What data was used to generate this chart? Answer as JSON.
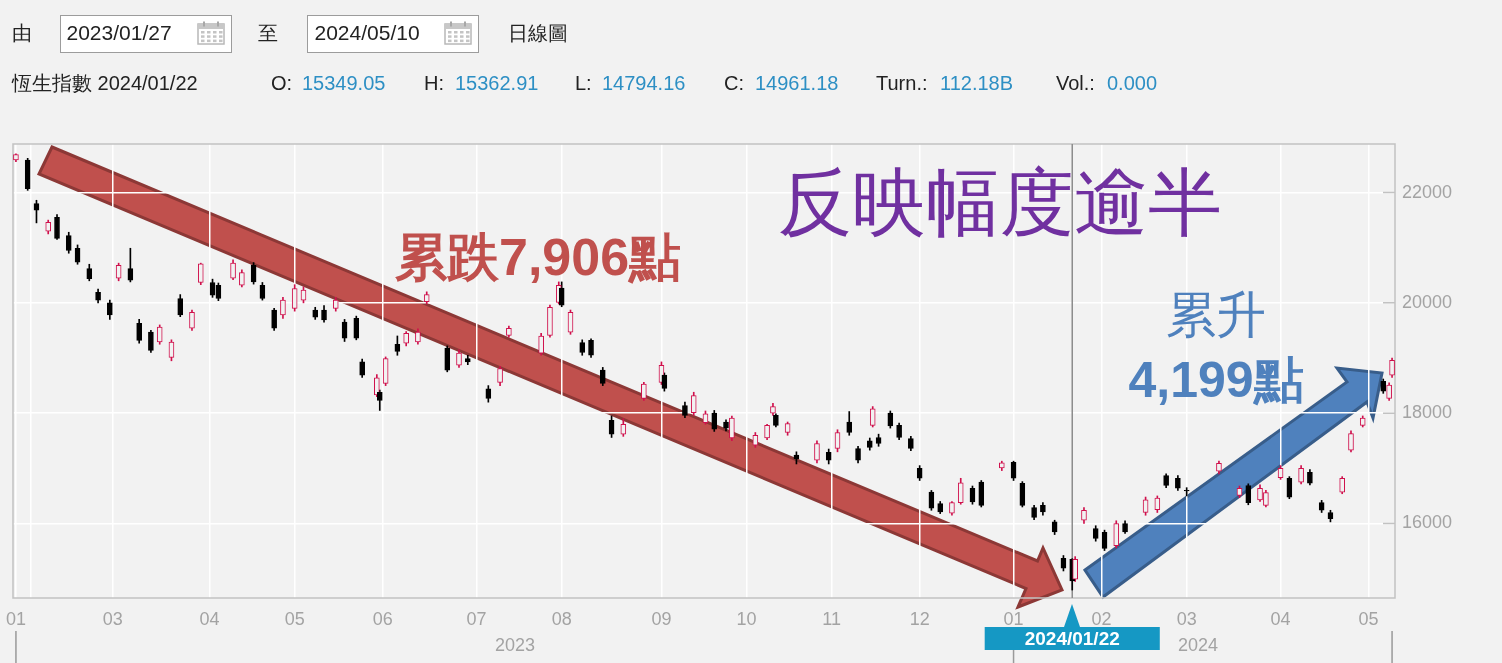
{
  "chart_data": {
    "type": "candlestick",
    "x": [
      "2023-01-27",
      "2023-01-31",
      "2023-02-03",
      "2023-02-07",
      "2023-02-10",
      "2023-02-14",
      "2023-02-17",
      "2023-02-21",
      "2023-02-24",
      "2023-02-28",
      "2023-03-03",
      "2023-03-07",
      "2023-03-10",
      "2023-03-14",
      "2023-03-17",
      "2023-03-21",
      "2023-03-24",
      "2023-03-28",
      "2023-03-31",
      "2023-04-04",
      "2023-04-06",
      "2023-04-11",
      "2023-04-14",
      "2023-04-18",
      "2023-04-21",
      "2023-04-25",
      "2023-04-28",
      "2023-05-02",
      "2023-05-05",
      "2023-05-09",
      "2023-05-12",
      "2023-05-16",
      "2023-05-19",
      "2023-05-23",
      "2023-05-25",
      "2023-05-30",
      "2023-05-31",
      "2023-06-02",
      "2023-06-06",
      "2023-06-09",
      "2023-06-13",
      "2023-06-16",
      "2023-06-23",
      "2023-06-27",
      "2023-06-30",
      "2023-07-07",
      "2023-07-11",
      "2023-07-14",
      "2023-07-25",
      "2023-07-28",
      "2023-07-31",
      "2023-08-01",
      "2023-08-04",
      "2023-08-08",
      "2023-08-11",
      "2023-08-15",
      "2023-08-18",
      "2023-08-22",
      "2023-08-29",
      "2023-09-04",
      "2023-09-05",
      "2023-09-12",
      "2023-09-15",
      "2023-09-19",
      "2023-09-22",
      "2023-09-26",
      "2023-09-28",
      "2023-10-06",
      "2023-10-10",
      "2023-10-12",
      "2023-10-13",
      "2023-10-17",
      "2023-10-20",
      "2023-10-27",
      "2023-10-31",
      "2023-11-03",
      "2023-11-07",
      "2023-11-10",
      "2023-11-14",
      "2023-11-15",
      "2023-11-17",
      "2023-11-21",
      "2023-11-24",
      "2023-11-28",
      "2023-12-01",
      "2023-12-05",
      "2023-12-08",
      "2023-12-12",
      "2023-12-15",
      "2023-12-19",
      "2023-12-22",
      "2023-12-29",
      "2024-01-02",
      "2024-01-05",
      "2024-01-09",
      "2024-01-12",
      "2024-01-16",
      "2024-01-19",
      "2024-01-22",
      "2024-01-23",
      "2024-01-26",
      "2024-01-30",
      "2024-02-02",
      "2024-02-06",
      "2024-02-09",
      "2024-02-16",
      "2024-02-20",
      "2024-02-23",
      "2024-02-27",
      "2024-03-01",
      "2024-03-12",
      "2024-03-19",
      "2024-03-22",
      "2024-03-26",
      "2024-03-28",
      "2024-04-02",
      "2024-04-05",
      "2024-04-09",
      "2024-04-12",
      "2024-04-16",
      "2024-04-19",
      "2024-04-23",
      "2024-04-26",
      "2024-04-30",
      "2024-05-07",
      "2024-05-09",
      "2024-05-10"
    ],
    "ohlc": [
      [
        22590,
        22700,
        22560,
        22690
      ],
      [
        22590,
        22620,
        22040,
        22070
      ],
      [
        21800,
        21860,
        21450,
        21680
      ],
      [
        21300,
        21500,
        21250,
        21460
      ],
      [
        21550,
        21600,
        21150,
        21170
      ],
      [
        21220,
        21280,
        20900,
        20950
      ],
      [
        20990,
        21050,
        20700,
        20740
      ],
      [
        20620,
        20700,
        20400,
        20440
      ],
      [
        20190,
        20250,
        20000,
        20050
      ],
      [
        20000,
        20050,
        19700,
        19780
      ],
      [
        20450,
        20720,
        20400,
        20680
      ],
      [
        20620,
        20990,
        20380,
        20410
      ],
      [
        19630,
        19700,
        19270,
        19320
      ],
      [
        19470,
        19500,
        19100,
        19140
      ],
      [
        19290,
        19600,
        19250,
        19560
      ],
      [
        19010,
        19330,
        18950,
        19290
      ],
      [
        20080,
        20150,
        19750,
        19780
      ],
      [
        19540,
        19870,
        19500,
        19830
      ],
      [
        20370,
        20720,
        20330,
        20710
      ],
      [
        20370,
        20430,
        20100,
        20140
      ],
      [
        20320,
        20360,
        20040,
        20080
      ],
      [
        20450,
        20780,
        20420,
        20720
      ],
      [
        20320,
        20600,
        20290,
        20550
      ],
      [
        20680,
        20730,
        20340,
        20380
      ],
      [
        20320,
        20370,
        20050,
        20080
      ],
      [
        19870,
        19900,
        19500,
        19540
      ],
      [
        19780,
        20100,
        19720,
        20050
      ],
      [
        19900,
        20330,
        19850,
        20260
      ],
      [
        20050,
        20290,
        20000,
        20230
      ],
      [
        19870,
        19920,
        19700,
        19740
      ],
      [
        19870,
        19950,
        19650,
        19690
      ],
      [
        19900,
        20100,
        19850,
        20050
      ],
      [
        19650,
        19700,
        19300,
        19360
      ],
      [
        19720,
        19760,
        19330,
        19360
      ],
      [
        18930,
        18980,
        18650,
        18690
      ],
      [
        18330,
        18700,
        18300,
        18640
      ],
      [
        18380,
        18420,
        18050,
        18230
      ],
      [
        18540,
        19020,
        18500,
        18990
      ],
      [
        19250,
        19400,
        19050,
        19120
      ],
      [
        19270,
        19480,
        19220,
        19450
      ],
      [
        19290,
        19530,
        19250,
        19470
      ],
      [
        20020,
        20200,
        19980,
        20150
      ],
      [
        19180,
        19220,
        18750,
        18780
      ],
      [
        18870,
        19150,
        18830,
        19090
      ],
      [
        18990,
        19050,
        18880,
        18930
      ],
      [
        18440,
        18500,
        18200,
        18270
      ],
      [
        18560,
        18850,
        18500,
        18810
      ],
      [
        19410,
        19580,
        19380,
        19540
      ],
      [
        19090,
        19450,
        19050,
        19400
      ],
      [
        19410,
        19960,
        19380,
        19920
      ],
      [
        20010,
        20380,
        19980,
        20320
      ],
      [
        20270,
        20380,
        19930,
        19960
      ],
      [
        19470,
        19870,
        19430,
        19830
      ],
      [
        19280,
        19330,
        19050,
        19100
      ],
      [
        19320,
        19350,
        19010,
        19050
      ],
      [
        18780,
        18830,
        18500,
        18540
      ],
      [
        17870,
        17950,
        17560,
        17620
      ],
      [
        17620,
        17900,
        17580,
        17800
      ],
      [
        18270,
        18560,
        18230,
        18530
      ],
      [
        18560,
        18930,
        18520,
        18870
      ],
      [
        18690,
        18730,
        18400,
        18450
      ],
      [
        18140,
        18200,
        17920,
        17960
      ],
      [
        18010,
        18380,
        17960,
        18320
      ],
      [
        17830,
        18040,
        17800,
        17990
      ],
      [
        18000,
        18050,
        17670,
        17710
      ],
      [
        17840,
        17880,
        17680,
        17730
      ],
      [
        17550,
        17950,
        17500,
        17910
      ],
      [
        17420,
        17650,
        17380,
        17600
      ],
      [
        17550,
        17800,
        17520,
        17780
      ],
      [
        18000,
        18180,
        17960,
        18120
      ],
      [
        17960,
        17990,
        17750,
        17780
      ],
      [
        17650,
        17840,
        17600,
        17810
      ],
      [
        17240,
        17300,
        17080,
        17170
      ],
      [
        17150,
        17500,
        17100,
        17450
      ],
      [
        17290,
        17350,
        17080,
        17150
      ],
      [
        17360,
        17700,
        17300,
        17650
      ],
      [
        17840,
        18030,
        17600,
        17650
      ],
      [
        17360,
        17400,
        17100,
        17150
      ],
      [
        17500,
        17550,
        17330,
        17380
      ],
      [
        17780,
        18120,
        17750,
        18080
      ],
      [
        17560,
        17620,
        17400,
        17450
      ],
      [
        18000,
        18040,
        17730,
        17770
      ],
      [
        17780,
        17820,
        17520,
        17560
      ],
      [
        17540,
        17580,
        17320,
        17360
      ],
      [
        17000,
        17050,
        16780,
        16820
      ],
      [
        16570,
        16600,
        16240,
        16280
      ],
      [
        16360,
        16400,
        16180,
        16210
      ],
      [
        16190,
        16400,
        16150,
        16380
      ],
      [
        16380,
        16820,
        16350,
        16740
      ],
      [
        16640,
        16680,
        16350,
        16390
      ],
      [
        16750,
        16780,
        16300,
        16330
      ],
      [
        17010,
        17130,
        16960,
        17100
      ],
      [
        17110,
        17130,
        16780,
        16820
      ],
      [
        16730,
        16760,
        16300,
        16330
      ],
      [
        16290,
        16330,
        16070,
        16110
      ],
      [
        16330,
        16380,
        16150,
        16210
      ],
      [
        16030,
        16060,
        15800,
        15850
      ],
      [
        15370,
        15420,
        15140,
        15190
      ],
      [
        15349.05,
        15362.91,
        14794.16,
        14961.18
      ],
      [
        14990,
        15400,
        14950,
        15350
      ],
      [
        16060,
        16290,
        16000,
        16240
      ],
      [
        15910,
        15960,
        15680,
        15730
      ],
      [
        15840,
        15880,
        15510,
        15550
      ],
      [
        15600,
        16050,
        15560,
        16000
      ],
      [
        16000,
        16050,
        15820,
        15850
      ],
      [
        16200,
        16480,
        16150,
        16430
      ],
      [
        16250,
        16500,
        16200,
        16460
      ],
      [
        16870,
        16900,
        16650,
        16690
      ],
      [
        16820,
        16870,
        16600,
        16640
      ],
      [
        16600,
        16650,
        16500,
        16590
      ],
      [
        16950,
        17130,
        16900,
        17090
      ],
      [
        16510,
        16680,
        16470,
        16640
      ],
      [
        16690,
        16720,
        16340,
        16380
      ],
      [
        16430,
        16700,
        16400,
        16640
      ],
      [
        16330,
        16600,
        16300,
        16560
      ],
      [
        16830,
        17050,
        16800,
        17000
      ],
      [
        16820,
        16850,
        16450,
        16480
      ],
      [
        16750,
        17050,
        16720,
        17000
      ],
      [
        16930,
        16980,
        16700,
        16730
      ],
      [
        16380,
        16420,
        16200,
        16240
      ],
      [
        16200,
        16240,
        16030,
        16090
      ],
      [
        16570,
        16850,
        16540,
        16820
      ],
      [
        17330,
        17680,
        17300,
        17630
      ],
      [
        17780,
        17950,
        17750,
        17910
      ],
      [
        18580,
        18620,
        18360,
        18400
      ],
      [
        18270,
        18550,
        18230,
        18510
      ],
      [
        18690,
        19000,
        18650,
        18960
      ]
    ],
    "colors": [
      "#d0104c",
      "#000000",
      "#000000",
      "#d0104c",
      "#000000",
      "#000000",
      "#000000",
      "#000000",
      "#000000",
      "#000000",
      "#d0104c",
      "#000000",
      "#000000",
      "#000000",
      "#d0104c",
      "#d0104c",
      "#000000",
      "#d0104c",
      "#d0104c",
      "#000000",
      "#000000",
      "#d0104c",
      "#d0104c",
      "#000000",
      "#000000",
      "#000000",
      "#d0104c",
      "#d0104c",
      "#d0104c",
      "#000000",
      "#000000",
      "#d0104c",
      "#000000",
      "#000000",
      "#000000",
      "#d0104c",
      "#000000",
      "#d0104c",
      "#000000",
      "#d0104c",
      "#d0104c",
      "#d0104c",
      "#000000",
      "#d0104c",
      "#000000",
      "#000000",
      "#d0104c",
      "#d0104c",
      "#d0104c",
      "#d0104c",
      "#d0104c",
      "#000000",
      "#d0104c",
      "#000000",
      "#000000",
      "#000000",
      "#000000",
      "#d0104c",
      "#d0104c",
      "#d0104c",
      "#000000",
      "#000000",
      "#d0104c",
      "#d0104c",
      "#000000",
      "#000000",
      "#d0104c",
      "#d0104c",
      "#d0104c",
      "#d0104c",
      "#000000",
      "#d0104c",
      "#000000",
      "#d0104c",
      "#000000",
      "#d0104c",
      "#000000",
      "#000000",
      "#000000",
      "#d0104c",
      "#000000",
      "#000000",
      "#000000",
      "#000000",
      "#000000",
      "#000000",
      "#000000",
      "#d0104c",
      "#d0104c",
      "#000000",
      "#000000",
      "#d0104c",
      "#000000",
      "#000000",
      "#000000",
      "#000000",
      "#000000",
      "#000000",
      "#000000",
      "#d0104c",
      "#d0104c",
      "#000000",
      "#000000",
      "#d0104c",
      "#000000",
      "#d0104c",
      "#d0104c",
      "#000000",
      "#000000",
      "#000000",
      "#d0104c",
      "#d0104c",
      "#000000",
      "#d0104c",
      "#d0104c",
      "#d0104c",
      "#000000",
      "#d0104c",
      "#000000",
      "#000000",
      "#000000",
      "#d0104c",
      "#d0104c",
      "#d0104c",
      "#000000",
      "#d0104c",
      "#d0104c"
    ],
    "xlim": [
      "2023-01-26",
      "2024-05-11"
    ],
    "ylim": [
      14650,
      22880
    ],
    "xticks": [
      {
        "value": "2023-01-27",
        "label": "01"
      },
      {
        "value": "2023-02-01",
        "label": null
      },
      {
        "value": "2023-03-01",
        "label": "03"
      },
      {
        "value": "2023-04-03",
        "label": "04"
      },
      {
        "value": "2023-05-02",
        "label": "05"
      },
      {
        "value": "2023-06-01",
        "label": "06"
      },
      {
        "value": "2023-07-03",
        "label": "07"
      },
      {
        "value": "2023-08-01",
        "label": "08"
      },
      {
        "value": "2023-09-04",
        "label": "09"
      },
      {
        "value": "2023-10-03",
        "label": "10"
      },
      {
        "value": "2023-11-01",
        "label": "11"
      },
      {
        "value": "2023-12-01",
        "label": "12"
      },
      {
        "value": "2024-01-02",
        "label": "01"
      },
      {
        "value": "2024-02-01",
        "label": "02"
      },
      {
        "value": "2024-03-01",
        "label": "03"
      },
      {
        "value": "2024-04-02",
        "label": "04"
      },
      {
        "value": "2024-05-02",
        "label": "05"
      }
    ],
    "yticks": [
      16000,
      18000,
      20000,
      22000
    ],
    "grid": true,
    "ref_lines": [
      {
        "axis": "x",
        "value": "2024-01-22",
        "label": "2024/01/22",
        "color": "#8c8c8c"
      }
    ],
    "annotations": [
      "由",
      "2023/01/27",
      "至",
      "2024/05/10",
      "日線圖",
      "恆生指數 2024/01/22",
      "O:",
      "15349.05",
      "H:",
      "15362.91",
      "L:",
      "14794.16",
      "C:",
      "14961.18",
      "Turn.:",
      "112.18B",
      "Vol.:",
      "0.000",
      "反映幅度逾半",
      "累跌7,906點",
      "累升",
      "4,199點",
      "2023",
      "2024"
    ]
  }
}
